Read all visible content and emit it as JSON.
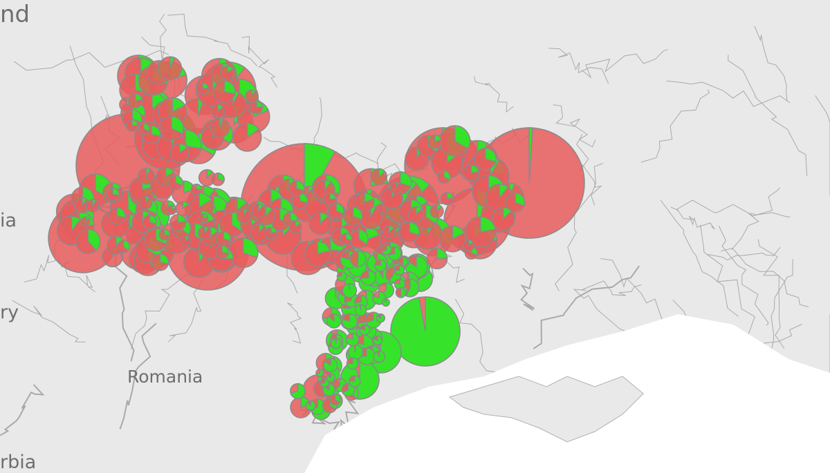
{
  "map": {
    "labels": {
      "poland": "nd",
      "slovakia": "ia",
      "hungary": "ry",
      "romania": "Romania",
      "serbia": "rbia"
    },
    "colors": {
      "land": "#e9e9e9",
      "sea": "#ffffff",
      "border": "#a9a9a9",
      "pie_red": "#e85c5c",
      "pie_green": "#22f022",
      "pie_stroke": "#8a8a8a"
    },
    "marker_type": "pie",
    "series": [
      "red share",
      "green share"
    ]
  }
}
